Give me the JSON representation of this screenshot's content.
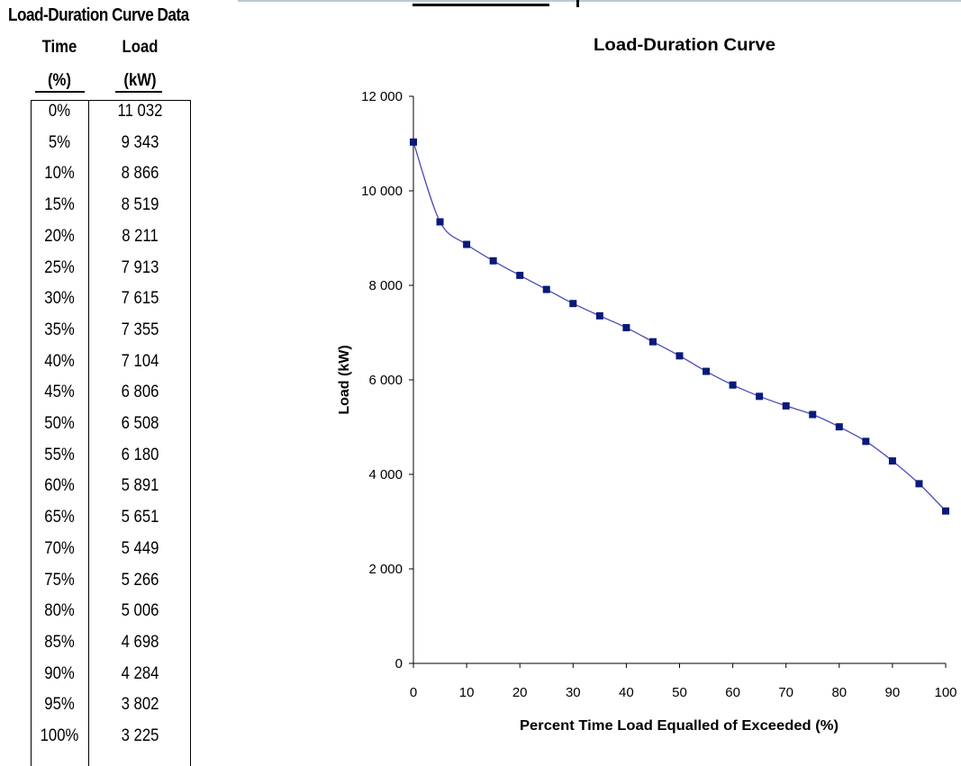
{
  "table": {
    "title": "Load-Duration Curve Data",
    "header_time_1": "Time",
    "header_time_2": "(%)",
    "header_load_1": "Load",
    "header_load_2": "(kW)",
    "rows": [
      {
        "time": "0%",
        "load": "11 032"
      },
      {
        "time": "5%",
        "load": "9 343"
      },
      {
        "time": "10%",
        "load": "8 866"
      },
      {
        "time": "15%",
        "load": "8 519"
      },
      {
        "time": "20%",
        "load": "8 211"
      },
      {
        "time": "25%",
        "load": "7 913"
      },
      {
        "time": "30%",
        "load": "7 615"
      },
      {
        "time": "35%",
        "load": "7 355"
      },
      {
        "time": "40%",
        "load": "7 104"
      },
      {
        "time": "45%",
        "load": "6 806"
      },
      {
        "time": "50%",
        "load": "6 508"
      },
      {
        "time": "55%",
        "load": "6 180"
      },
      {
        "time": "60%",
        "load": "5 891"
      },
      {
        "time": "65%",
        "load": "5 651"
      },
      {
        "time": "70%",
        "load": "5 449"
      },
      {
        "time": "75%",
        "load": "5 266"
      },
      {
        "time": "80%",
        "load": "5 006"
      },
      {
        "time": "85%",
        "load": "4 698"
      },
      {
        "time": "90%",
        "load": "4 284"
      },
      {
        "time": "95%",
        "load": "3 802"
      },
      {
        "time": "100%",
        "load": "3 225"
      }
    ]
  },
  "chart_data": {
    "type": "line",
    "title": "Load-Duration Curve",
    "xlabel": "Percent Time Load Equalled of Exceeded (%)",
    "ylabel": "Load (kW)",
    "xlim": [
      0,
      100
    ],
    "ylim": [
      0,
      12000
    ],
    "xticks": [
      0,
      10,
      20,
      30,
      40,
      50,
      60,
      70,
      80,
      90,
      100
    ],
    "xtick_labels": [
      "0",
      "10",
      "20",
      "30",
      "40",
      "50",
      "60",
      "70",
      "80",
      "90",
      "100"
    ],
    "yticks": [
      0,
      2000,
      4000,
      6000,
      8000,
      10000,
      12000
    ],
    "ytick_labels": [
      "0",
      "2 000",
      "4 000",
      "6 000",
      "8 000",
      "10 000",
      "12 000"
    ],
    "grid": false,
    "legend": false,
    "series": [
      {
        "x": [
          0,
          5,
          10,
          15,
          20,
          25,
          30,
          35,
          40,
          45,
          50,
          55,
          60,
          65,
          70,
          75,
          80,
          85,
          90,
          95,
          100
        ],
        "y": [
          11032,
          9343,
          8866,
          8519,
          8211,
          7913,
          7615,
          7355,
          7104,
          6806,
          6508,
          6180,
          5891,
          5651,
          5449,
          5266,
          5006,
          4698,
          4284,
          3802,
          3225
        ],
        "color": "#4a4ab8",
        "marker_color": "#0a1a7a",
        "marker": "square",
        "smooth": true
      }
    ]
  }
}
